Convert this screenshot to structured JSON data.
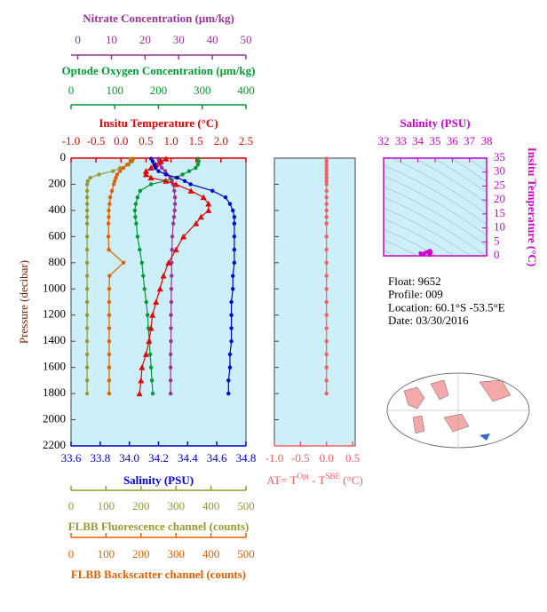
{
  "chart_data": [
    {
      "type": "profile",
      "ylabel": "Pressure (decibar)",
      "ylim": [
        0,
        2200
      ],
      "yticks": [
        0,
        200,
        400,
        600,
        800,
        1000,
        1200,
        1400,
        1600,
        1800,
        2000,
        2200
      ],
      "background": "#cdeff9",
      "pressure": [
        5,
        25,
        50,
        75,
        100,
        125,
        150,
        175,
        200,
        250,
        300,
        350,
        400,
        450,
        500,
        600,
        700,
        800,
        900,
        1000,
        1100,
        1200,
        1300,
        1400,
        1500,
        1600,
        1700,
        1800
      ],
      "top_axes": [
        {
          "label": "Nitrate Concentration (μm/kg)",
          "color": "#993399",
          "marker": "circle",
          "xlim": [
            -2,
            50
          ],
          "xticks": [
            0,
            10,
            20,
            30,
            40,
            50
          ],
          "values": [
            24,
            24.2,
            24.5,
            25,
            26,
            26.5,
            27.5,
            28,
            28.3,
            28.7,
            28.9,
            28.9,
            28.8,
            28.6,
            28.4,
            28.1,
            28,
            27.9,
            27.9,
            27.8,
            27.8,
            27.7,
            27.7,
            27.7,
            27.6,
            27.6,
            27.6,
            27.6
          ]
        },
        {
          "label": "Optode Oxygen Concentration (μm/kg)",
          "color": "#009933",
          "marker": "circle",
          "xlim": [
            0,
            400
          ],
          "xticks": [
            0,
            100,
            200,
            300,
            400
          ],
          "values": [
            290,
            292,
            290,
            285,
            270,
            255,
            240,
            215,
            183,
            158,
            152,
            148,
            146,
            147,
            149,
            152,
            157,
            162,
            165,
            168,
            172,
            175,
            177,
            179,
            181,
            183,
            185,
            187
          ]
        },
        {
          "label": "Insitu Temperature (°C)",
          "color": "#e00000",
          "marker": "triangle",
          "xlim": [
            -1,
            2.5
          ],
          "xticks": [
            {
              "value": -1,
              "label": "-1.0"
            },
            -0.5,
            {
              "value": 0,
              "label": "0.0"
            },
            0.5,
            {
              "value": 1,
              "label": "1.0"
            },
            1.5,
            {
              "value": 2,
              "label": "2.0"
            },
            2.5
          ],
          "values": [
            0.9,
            0.8,
            0.7,
            0.6,
            0.5,
            0.5,
            0.6,
            0.9,
            1.1,
            1.4,
            1.65,
            1.75,
            1.75,
            1.6,
            1.5,
            1.25,
            1.1,
            0.95,
            0.85,
            0.78,
            0.7,
            0.63,
            0.6,
            0.56,
            0.5,
            0.42,
            0.4,
            0.37
          ]
        }
      ],
      "bottom_axes": [
        {
          "label": "Salinity (PSU)",
          "color": "#0000cc",
          "marker": "circle",
          "xlim": [
            33.6,
            34.8
          ],
          "xticks": [
            33.6,
            33.8,
            {
              "value": 34,
              "label": "34.0"
            },
            34.2,
            34.4,
            34.6,
            34.8
          ],
          "values": [
            34.15,
            34.16,
            34.17,
            34.18,
            34.2,
            34.25,
            34.33,
            34.38,
            34.42,
            34.57,
            34.66,
            34.69,
            34.71,
            34.72,
            34.72,
            34.72,
            34.72,
            34.72,
            34.71,
            34.71,
            34.7,
            34.7,
            34.7,
            34.7,
            34.69,
            34.69,
            34.68,
            34.68
          ]
        },
        {
          "label": "FLBB Fluorescence channel (counts)",
          "color": "#999933",
          "marker": "circle",
          "xlim": [
            0,
            500
          ],
          "xticks": [
            0,
            100,
            200,
            300,
            400,
            500
          ],
          "values": [
            170,
            175,
            165,
            140,
            120,
            80,
            55,
            48,
            46,
            46,
            46,
            46,
            46,
            46,
            46,
            46,
            46,
            46,
            46,
            46,
            46,
            46,
            46,
            46,
            46,
            46,
            46,
            46
          ]
        },
        {
          "label": "FLBB Backscatter channel (counts)",
          "color": "#e06000",
          "marker": "circle",
          "xlim": [
            0,
            500
          ],
          "xticks": [
            0,
            100,
            200,
            300,
            400,
            500
          ],
          "values": [
            178,
            170,
            160,
            150,
            140,
            132,
            128,
            125,
            122,
            117,
            112,
            110,
            108,
            108,
            107,
            107,
            108,
            150,
            110,
            109,
            109,
            109,
            109,
            109,
            109,
            109,
            109,
            109
          ]
        }
      ]
    },
    {
      "type": "profile_diff",
      "xlabel": [
        "AT= T",
        "Opt",
        " - T",
        "SBE",
        " (°C)"
      ],
      "color": "#f06060",
      "xlim": [
        -1,
        0.55
      ],
      "xticks": [
        {
          "value": -1,
          "label": "-1.0"
        },
        -0.5,
        {
          "value": 0,
          "label": "0.0"
        },
        0.5
      ],
      "values": [
        0,
        0,
        0,
        0,
        0,
        0,
        0,
        0,
        0,
        0,
        0,
        0,
        0,
        0,
        0,
        0,
        0,
        0,
        0,
        0,
        0,
        0,
        0,
        0,
        0,
        0,
        0,
        0
      ]
    },
    {
      "type": "ts",
      "xlabel": "Salinity (PSU)",
      "ylabel": "Insitu Temperature (°C)",
      "color": "#cc00cc",
      "xlim": [
        32,
        38
      ],
      "xticks": [
        32,
        33,
        34,
        35,
        36,
        37,
        38
      ],
      "ylim": [
        0,
        35
      ],
      "yticks": [
        0,
        5,
        10,
        15,
        20,
        25,
        30,
        35
      ]
    }
  ],
  "info": [
    "Float:  9652",
    "Profile:  009",
    "Location:  60.1°S  -53.5°E",
    "Date:  03/30/2016"
  ]
}
